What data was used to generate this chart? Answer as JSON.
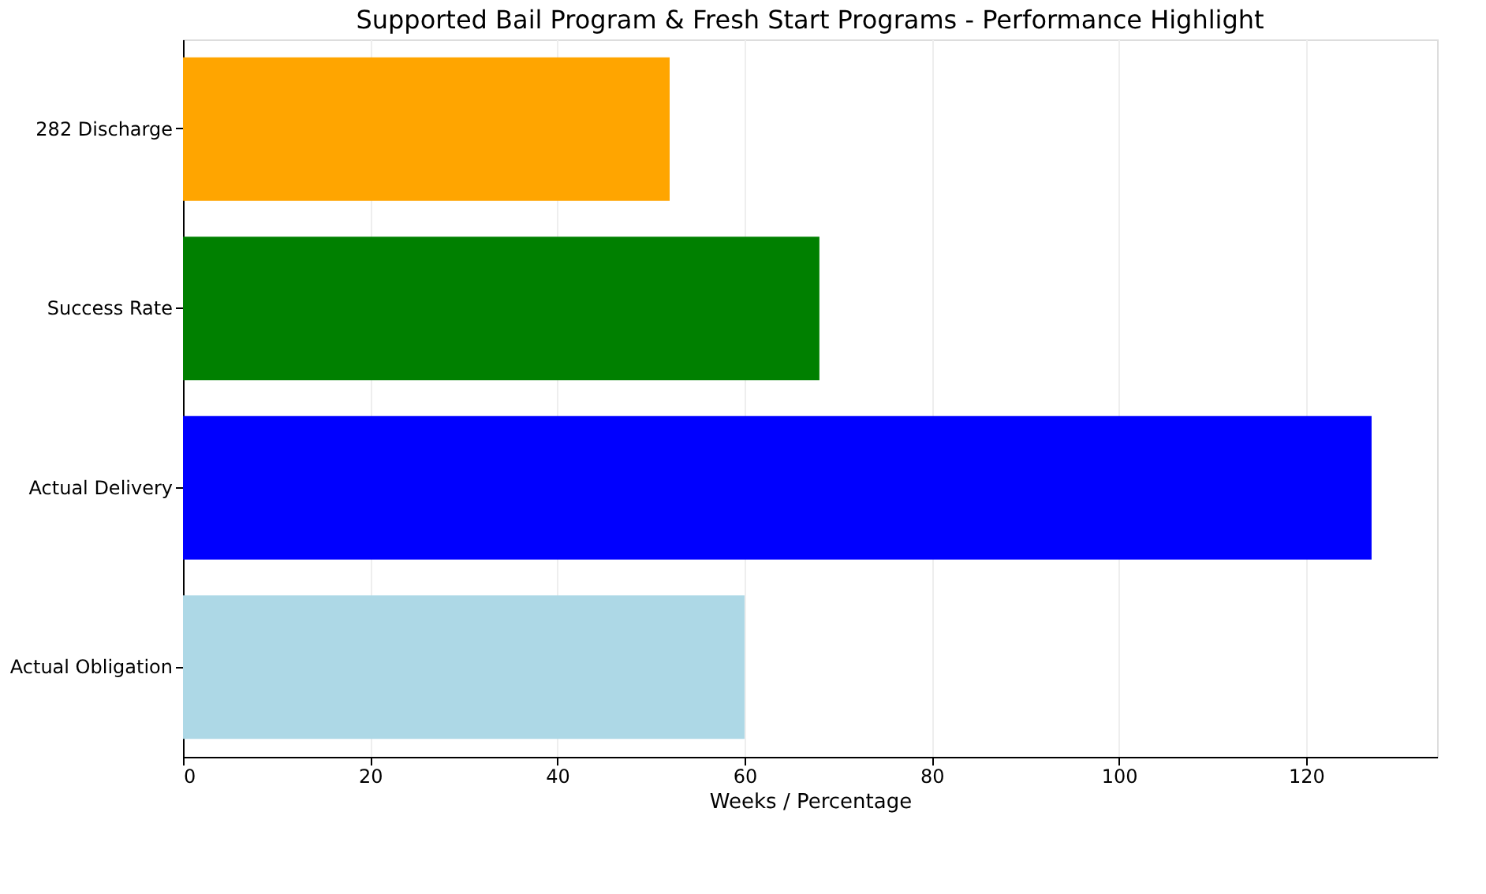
{
  "chart_data": {
    "type": "bar",
    "orientation": "horizontal",
    "title": "Supported Bail Program & Fresh Start Programs - Performance Highlight",
    "xlabel": "Weeks / Percentage",
    "categories": [
      "282 Discharge",
      "Success Rate",
      "Actual Delivery",
      "Actual Obligation"
    ],
    "values": [
      52,
      68,
      127,
      60
    ],
    "colors": [
      "#ffa500",
      "#008000",
      "#0000ff",
      "#add8e6"
    ],
    "xlim": [
      0,
      134
    ],
    "xticks": [
      0,
      20,
      40,
      60,
      80,
      100,
      120
    ],
    "grid": "x"
  }
}
